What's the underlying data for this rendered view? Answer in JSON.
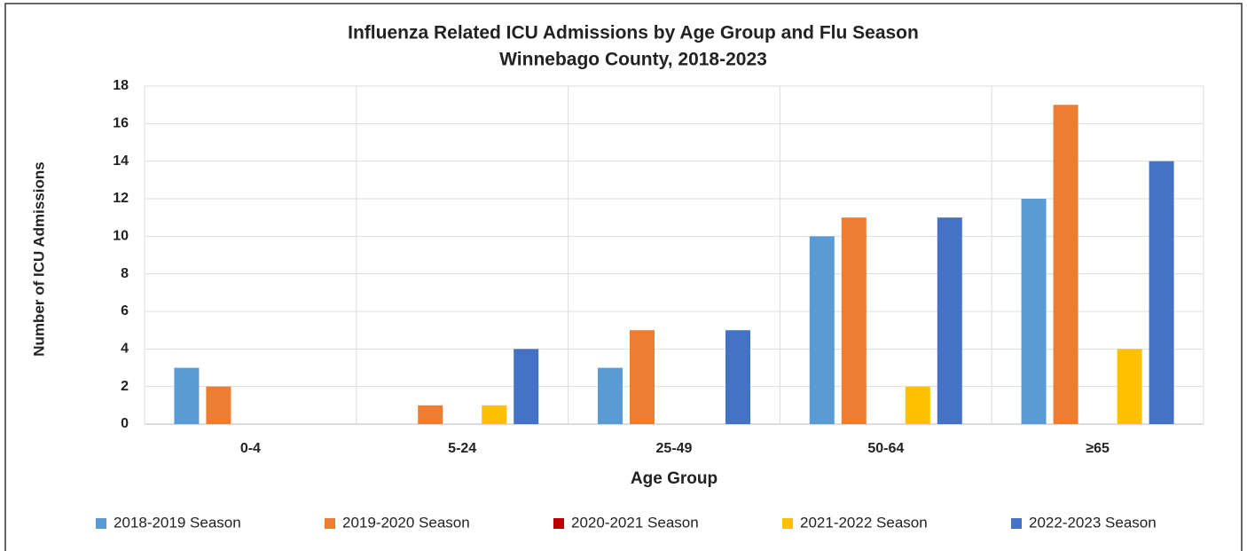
{
  "chart_data": {
    "type": "bar",
    "title": "Influenza Related ICU Admissions by Age Group and Flu Season",
    "subtitle": "Winnebago County, 2018-2023",
    "x_label": "Age Group",
    "y_label": "Number of ICU Admissions",
    "categories": [
      "0-4",
      "5-24",
      "25-49",
      "50-64",
      "≥65"
    ],
    "series": [
      {
        "name": "2018-2019 Season",
        "color": "#5b9bd5",
        "values": [
          3,
          0,
          3,
          10,
          12
        ]
      },
      {
        "name": "2019-2020 Season",
        "color": "#ed7d31",
        "values": [
          2,
          1,
          5,
          11,
          17
        ]
      },
      {
        "name": "2020-2021 Season",
        "color": "#c00000",
        "values": [
          0,
          0,
          0,
          0,
          0
        ]
      },
      {
        "name": "2021-2022 Season",
        "color": "#ffc000",
        "values": [
          0,
          1,
          0,
          2,
          4
        ]
      },
      {
        "name": "2022-2023 Season",
        "color": "#4472c4",
        "values": [
          0,
          4,
          5,
          11,
          14
        ]
      }
    ],
    "ylim": [
      0,
      18
    ],
    "yticks": [
      0,
      2,
      4,
      6,
      8,
      10,
      12,
      14,
      16,
      18
    ],
    "grid": true,
    "legend": "bottom"
  }
}
